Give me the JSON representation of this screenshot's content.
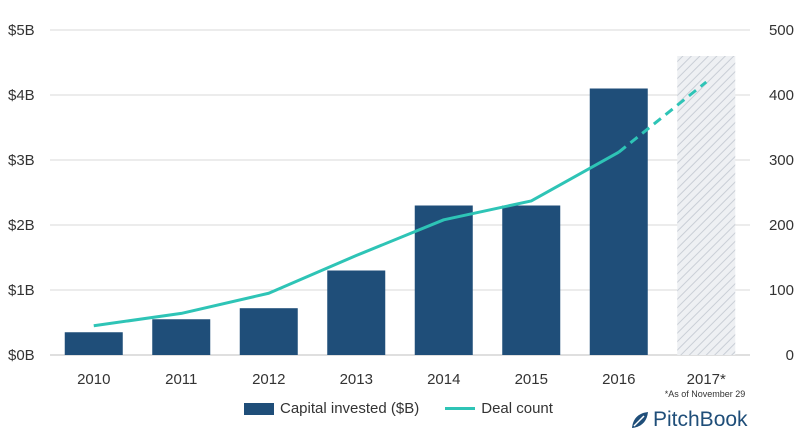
{
  "chart_data": {
    "type": "bar",
    "categories": [
      "2010",
      "2011",
      "2012",
      "2013",
      "2014",
      "2015",
      "2016",
      "2017*"
    ],
    "series": [
      {
        "name": "Capital invested ($B)",
        "type": "bar",
        "axis": "left",
        "values": [
          0.35,
          0.55,
          0.72,
          1.3,
          2.3,
          2.3,
          4.1,
          4.6
        ]
      },
      {
        "name": "Deal count",
        "type": "line",
        "axis": "right",
        "values": [
          45,
          64,
          95,
          153,
          208,
          237,
          312,
          420
        ]
      }
    ],
    "y_left": {
      "ylim": [
        0,
        5
      ],
      "ticks": [
        "$0B",
        "$1B",
        "$2B",
        "$3B",
        "$4B",
        "$5B"
      ]
    },
    "y_right": {
      "ylim": [
        0,
        500
      ],
      "ticks": [
        "0",
        "100",
        "200",
        "300",
        "400",
        "500"
      ]
    },
    "note": "*As of November 29",
    "grid": true,
    "legend_position": "bottom",
    "colors": {
      "bar": "#1f4e79",
      "line": "#2ec4b6",
      "projected": "#d9dde3",
      "grid": "#d9d9d9"
    }
  },
  "brand": {
    "name": "PitchBook"
  }
}
